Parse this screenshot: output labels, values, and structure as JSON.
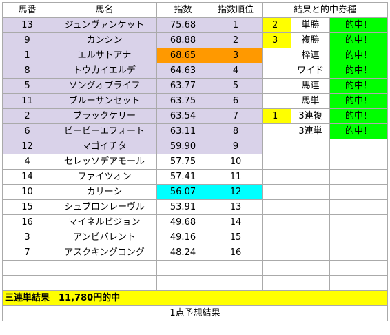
{
  "headers": {
    "number": "馬番",
    "name": "馬名",
    "index": "指数",
    "rank": "指数順位",
    "result": "結果と的中券種"
  },
  "horses": [
    {
      "number": "13",
      "name": "ジュンヴァンケット",
      "index": "75.68",
      "rank": "1",
      "hl": "lav"
    },
    {
      "number": "9",
      "name": "カンシン",
      "index": "68.88",
      "rank": "2",
      "hl": "lav"
    },
    {
      "number": "1",
      "name": "エルサトアナ",
      "index": "68.65",
      "rank": "3",
      "hl": "lav",
      "idx_hl": "orange"
    },
    {
      "number": "8",
      "name": "トウカイエルデ",
      "index": "64.63",
      "rank": "4",
      "hl": "lav"
    },
    {
      "number": "5",
      "name": "ソングオブライフ",
      "index": "63.77",
      "rank": "5",
      "hl": "lav"
    },
    {
      "number": "11",
      "name": "ブルーサンセット",
      "index": "63.75",
      "rank": "6",
      "hl": "lav"
    },
    {
      "number": "2",
      "name": "ブラックケリー",
      "index": "63.54",
      "rank": "7",
      "hl": "lav"
    },
    {
      "number": "6",
      "name": "ビービーエフォート",
      "index": "63.11",
      "rank": "8",
      "hl": "lav"
    },
    {
      "number": "12",
      "name": "マゴイチタ",
      "index": "59.90",
      "rank": "9",
      "hl": "lav"
    },
    {
      "number": "4",
      "name": "セレッソデアモール",
      "index": "57.75",
      "rank": "10",
      "hl": ""
    },
    {
      "number": "14",
      "name": "ファイツオン",
      "index": "57.41",
      "rank": "11",
      "hl": ""
    },
    {
      "number": "10",
      "name": "カリーシ",
      "index": "56.07",
      "rank": "12",
      "hl": "",
      "idx_hl": "cyan"
    },
    {
      "number": "15",
      "name": "シュブロンレーヴル",
      "index": "53.91",
      "rank": "13",
      "hl": ""
    },
    {
      "number": "16",
      "name": "マイネルビジョン",
      "index": "49.68",
      "rank": "14",
      "hl": ""
    },
    {
      "number": "3",
      "name": "アンビバレント",
      "index": "49.16",
      "rank": "15",
      "hl": ""
    },
    {
      "number": "7",
      "name": "アスクキングコング",
      "index": "48.24",
      "rank": "16",
      "hl": ""
    }
  ],
  "bets": [
    {
      "place": "2",
      "type": "単勝",
      "hit": "的中！"
    },
    {
      "place": "3",
      "type": "複勝",
      "hit": "的中！"
    },
    {
      "place": "",
      "type": "枠連",
      "hit": "的中！"
    },
    {
      "place": "",
      "type": "ワイド",
      "hit": "的中！"
    },
    {
      "place": "",
      "type": "馬連",
      "hit": "的中！"
    },
    {
      "place": "",
      "type": "馬単",
      "hit": "的中！"
    },
    {
      "place": "1",
      "type": "3連複",
      "hit": "的中！"
    },
    {
      "place": "",
      "type": "3連単",
      "hit": "的中！"
    }
  ],
  "result_banner": "三連単結果　11,780円的中",
  "footer_note": "1点予想結果",
  "colors": {
    "lavender": "#d9d2e9",
    "orange": "#ff9900",
    "cyan": "#00ffff",
    "yellow": "#ffff00",
    "green": "#00ff00"
  }
}
